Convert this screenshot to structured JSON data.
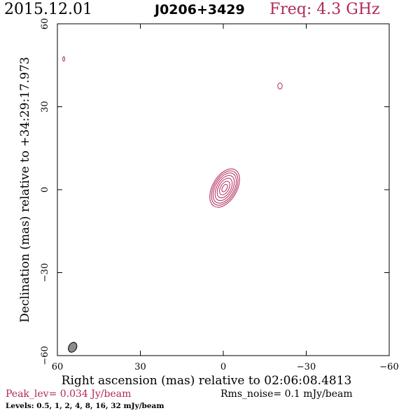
{
  "header": {
    "date": "2015.12.01",
    "source": "J0206+3429",
    "freq": "Freq: 4.3 GHz"
  },
  "footer": {
    "peak": "Peak_lev=  0.034 Jy/beam",
    "rms": "Rms_noise=  0.1 mJy/beam",
    "levels": "Levels: 0.5,   1,   2,   4,   8,  16,  32 mJy/beam"
  },
  "colors": {
    "contour": "#b0285a",
    "frame": "#000000",
    "beam_fill": "#8c8c8c"
  },
  "chart_data": {
    "type": "contour",
    "xlabel": "Right ascension (mas) relative to 02:06:08.4813",
    "ylabel": "Declination (mas) relative to +34:29:17.973",
    "xlim": [
      60,
      -60
    ],
    "ylim": [
      -60,
      60
    ],
    "xticks": [
      60,
      30,
      0,
      -30,
      -60
    ],
    "yticks": [
      -60,
      -30,
      0,
      30,
      60
    ],
    "xtick_labels": [
      "60",
      "30",
      "0",
      "−30",
      "−60"
    ],
    "ytick_labels": [
      "−60",
      "−30",
      "0",
      "30",
      "60"
    ],
    "levels_mJy": [
      0.5,
      1,
      2,
      4,
      8,
      16,
      32
    ],
    "peak_Jy_per_beam": 0.034,
    "rms_mJy_per_beam": 0.1,
    "core": {
      "ra": -0.5,
      "dec": 0.6,
      "contours": [
        {
          "a": 4.4,
          "b": 7.6,
          "angle": 30
        },
        {
          "a": 3.9,
          "b": 6.8,
          "angle": 30
        },
        {
          "a": 3.4,
          "b": 6.0,
          "angle": 30
        },
        {
          "a": 2.8,
          "b": 5.0,
          "angle": 30
        },
        {
          "a": 2.2,
          "b": 3.9,
          "angle": 30
        },
        {
          "a": 1.5,
          "b": 2.7,
          "angle": 30
        },
        {
          "a": 0.8,
          "b": 1.5,
          "angle": 30
        }
      ]
    },
    "isolated_components": [
      {
        "ra": -20.5,
        "dec": 37.5,
        "a": 0.8,
        "b": 1.1,
        "angle": 0
      },
      {
        "ra": 57.7,
        "dec": 47.3,
        "a": 0.35,
        "b": 0.8,
        "angle": 0
      }
    ],
    "beam": {
      "ra": 54.5,
      "dec": -57.0,
      "a": 1.4,
      "b": 1.9,
      "angle": 30
    }
  }
}
